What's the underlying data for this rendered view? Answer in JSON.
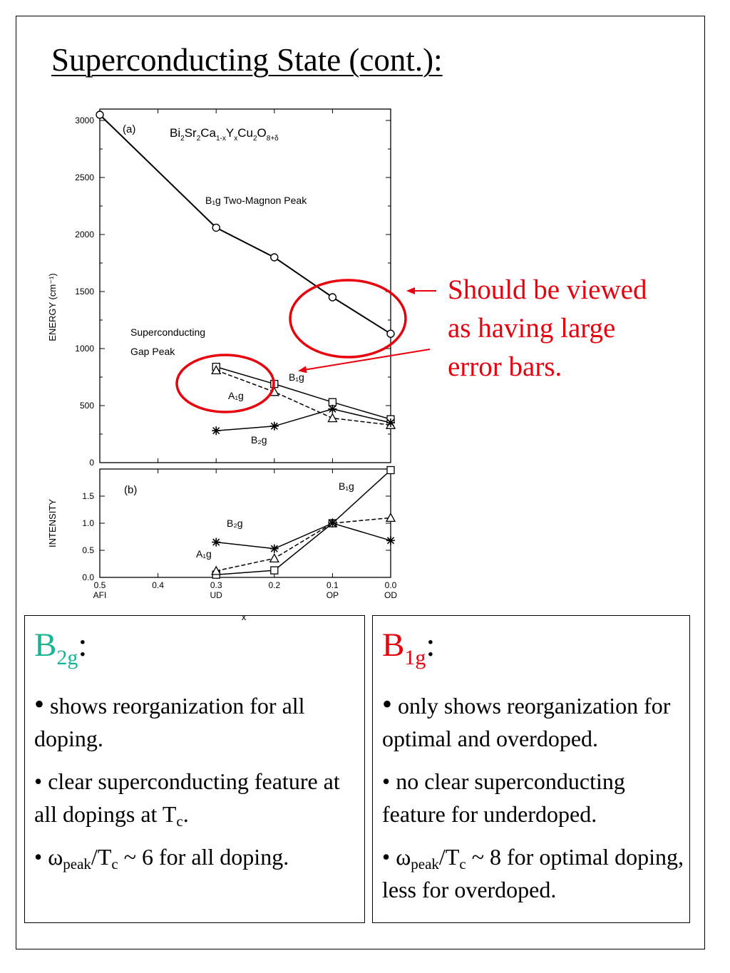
{
  "slide": {
    "title": "Superconducting State (cont.):"
  },
  "annotation": {
    "text_lines": [
      "Should be viewed",
      "as having large",
      "error bars."
    ],
    "color": "#e8000d"
  },
  "colors": {
    "b2g_heading": "#19b395",
    "b1g_heading": "#e8000d",
    "annotation_circle": "#e8000d"
  },
  "chart_data": [
    {
      "type": "line",
      "panel_label": "(a)",
      "compound": [
        "Bi",
        "2",
        "Sr",
        "2",
        "Ca",
        "1-x",
        "Y",
        "x",
        "Cu",
        "2",
        "O",
        "8+δ"
      ],
      "ylabel": "ENERGY (cm⁻¹)",
      "ylim": [
        0,
        3100
      ],
      "yticks": [
        "0",
        "500",
        "1000",
        "1500",
        "2000",
        "2500",
        "3000"
      ],
      "xlim": [
        0.5,
        0.0
      ],
      "annotations": {
        "two_magnon": "B₁g Two-Magnon Peak",
        "gap_peak_line1": "Superconducting",
        "gap_peak_line2": "Gap Peak",
        "b1g": "B₁g",
        "a1g": "A₁g",
        "b2g": "B₂g"
      },
      "series": [
        {
          "label": "two-magnon",
          "marker": "circle",
          "x": [
            0.5,
            0.3,
            0.2,
            0.1,
            0.0
          ],
          "y": [
            3050,
            2060,
            1800,
            1450,
            1130
          ]
        },
        {
          "label": "B1g",
          "marker": "square",
          "x": [
            0.3,
            0.2,
            0.1,
            0.0
          ],
          "y": [
            840,
            690,
            530,
            380
          ]
        },
        {
          "label": "A1g",
          "marker": "triangle",
          "x": [
            0.3,
            0.2,
            0.1,
            0.0
          ],
          "y": [
            810,
            620,
            390,
            330
          ]
        },
        {
          "label": "B2g",
          "marker": "star",
          "x": [
            0.3,
            0.2,
            0.1,
            0.0
          ],
          "y": [
            280,
            320,
            470,
            350
          ]
        }
      ]
    },
    {
      "type": "line",
      "panel_label": "(b)",
      "ylabel": "INTENSITY",
      "ylim": [
        0,
        2.0
      ],
      "yticks": [
        "0.0",
        "0.5",
        "1.0",
        "1.5"
      ],
      "xlabel": "x",
      "xlim": [
        0.5,
        0.0
      ],
      "xticks": [
        {
          "value": 0.5,
          "label": "0.5",
          "sub": "AFI"
        },
        {
          "value": 0.4,
          "label": "0.4",
          "sub": ""
        },
        {
          "value": 0.3,
          "label": "0.3",
          "sub": "UD"
        },
        {
          "value": 0.2,
          "label": "0.2",
          "sub": ""
        },
        {
          "value": 0.1,
          "label": "0.1",
          "sub": "OP"
        },
        {
          "value": 0.0,
          "label": "0.0",
          "sub": "OD"
        }
      ],
      "annotations": {
        "b1g": "B₁g",
        "b2g": "B₂g",
        "a1g": "A₁g"
      },
      "series": [
        {
          "label": "B1g",
          "marker": "square",
          "x": [
            0.3,
            0.2,
            0.1,
            0.0
          ],
          "y": [
            0.05,
            0.13,
            1.0,
            1.98
          ]
        },
        {
          "label": "A1g",
          "marker": "triangle",
          "x": [
            0.3,
            0.2,
            0.1,
            0.0
          ],
          "y": [
            0.12,
            0.35,
            1.0,
            1.1
          ]
        },
        {
          "label": "B2g",
          "marker": "star",
          "x": [
            0.3,
            0.2,
            0.1,
            0.0
          ],
          "y": [
            0.65,
            0.53,
            1.0,
            0.68
          ]
        }
      ]
    }
  ],
  "b2g_box": {
    "head_main": "B",
    "head_sub": "2g",
    "head_colon": ":",
    "p1_dot": "•",
    "p1_text": " shows reorganization for all doping.",
    "p2_text": "• clear superconducting feature at all dopings at T",
    "p2_sub": "c",
    "p2_end": ".",
    "p3_a": "• ω",
    "p3_sub1": "peak",
    "p3_b": "/T",
    "p3_sub2": "c",
    "p3_c": " ~ 6 for all doping."
  },
  "b1g_box": {
    "head_main": "B",
    "head_sub": "1g",
    "head_colon": ":",
    "p1_dot": "•",
    "p1_text": " only shows reorganization for optimal and overdoped.",
    "p2_text": "• no clear superconducting feature for underdoped.",
    "p3_a": "• ω",
    "p3_sub1": "peak",
    "p3_b": "/T",
    "p3_sub2": "c",
    "p3_c": " ~ 8 for optimal doping, less for overdoped."
  }
}
